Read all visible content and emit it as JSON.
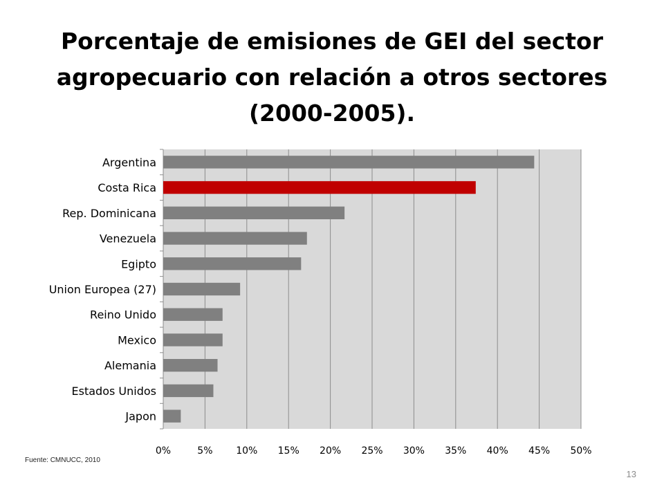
{
  "chart_data": {
    "type": "bar",
    "orientation": "horizontal",
    "title": "Porcentaje de emisiones de GEI del sector agropecuario con relación a otros sectores (2000-2005).",
    "categories": [
      "Argentina",
      "Costa Rica",
      "Rep. Dominicana",
      "Venezuela",
      "Egipto",
      "Union Europea (27)",
      "Reino Unido",
      "Mexico",
      "Alemania",
      "Estados Unidos",
      "Japon"
    ],
    "values": [
      44.4,
      37.4,
      21.7,
      17.2,
      16.5,
      9.2,
      7.1,
      7.1,
      6.5,
      6.0,
      2.1
    ],
    "xlim": [
      0,
      50
    ],
    "xticks": [
      0,
      5,
      10,
      15,
      20,
      25,
      30,
      35,
      40,
      45,
      50
    ],
    "tick_format": "percent",
    "grid": true,
    "legend": "none",
    "colors": {
      "bar": "#808080",
      "highlight": "#c00000",
      "plot_background": "#d9d9d9",
      "gridline": "#8c8c8c"
    },
    "highlight_category": "Costa Rica"
  },
  "footer": {
    "source": "Fuente: CMNUCC, 2010",
    "page_number": "13"
  }
}
